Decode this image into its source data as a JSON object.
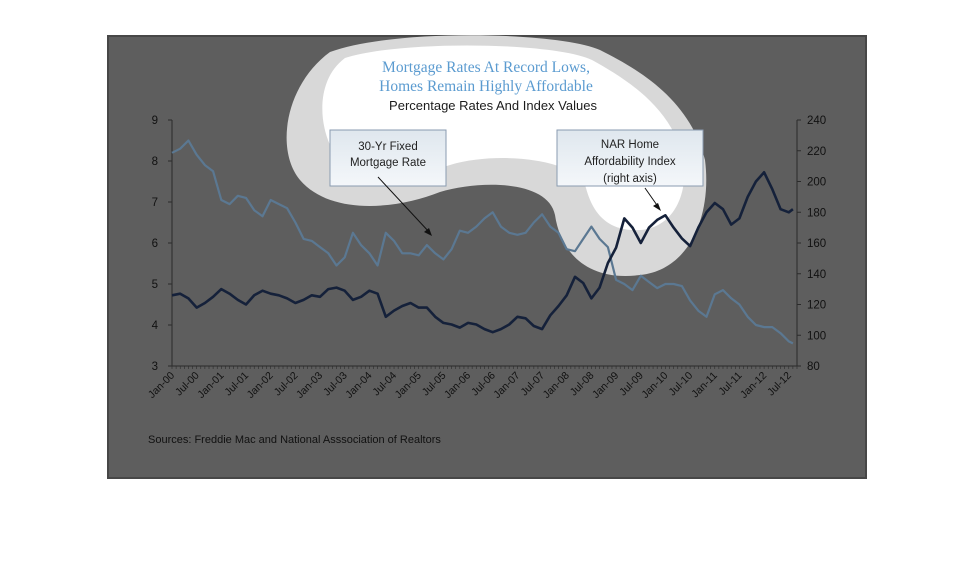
{
  "chart_data": {
    "type": "line",
    "title_lines": [
      "Mortgage Rates At Record Lows,",
      "Homes Remain Highly Affordable"
    ],
    "subtitle": "Percentage Rates And Index Values",
    "source": "Sources:  Freddie Mac and National Asssociation of Realtors",
    "x_tick_labels": [
      "Jan-00",
      "Jul-00",
      "Jan-01",
      "Jul-01",
      "Jan-02",
      "Jul-02",
      "Jan-03",
      "Jul-03",
      "Jan-04",
      "Jul-04",
      "Jan-05",
      "Jul-05",
      "Jan-06",
      "Jul-06",
      "Jan-07",
      "Jul-07",
      "Jan-08",
      "Jul-08",
      "Jan-09",
      "Jul-09",
      "Jan-10",
      "Jul-10",
      "Jan-11",
      "Jul-11",
      "Jan-12",
      "Jul-12"
    ],
    "x_start": "Jan-00",
    "x_end": "Sep-12",
    "y_left": {
      "min": 3,
      "max": 9,
      "ticks": [
        3,
        4,
        5,
        6,
        7,
        8,
        9
      ]
    },
    "y_right": {
      "min": 80,
      "max": 240,
      "ticks": [
        80,
        100,
        120,
        140,
        160,
        180,
        200,
        220,
        240
      ]
    },
    "grid": false,
    "colors": {
      "mortgage": "#5b7892",
      "nar": "#15213a",
      "plot_bg": "#5e5e5e",
      "frame": "#4a4a4a",
      "title": "#5b9bd0"
    },
    "series": [
      {
        "name": "30-Yr Fixed Mortgage Rate",
        "axis": "left",
        "color": "#5b7892",
        "points": [
          [
            "Jan-00",
            8.2
          ],
          [
            "Mar-00",
            8.3
          ],
          [
            "May-00",
            8.5
          ],
          [
            "Jul-00",
            8.15
          ],
          [
            "Sep-00",
            7.9
          ],
          [
            "Nov-00",
            7.75
          ],
          [
            "Jan-01",
            7.05
          ],
          [
            "Mar-01",
            6.95
          ],
          [
            "May-01",
            7.15
          ],
          [
            "Jul-01",
            7.1
          ],
          [
            "Sep-01",
            6.8
          ],
          [
            "Nov-01",
            6.65
          ],
          [
            "Jan-02",
            7.05
          ],
          [
            "Mar-02",
            6.95
          ],
          [
            "May-02",
            6.85
          ],
          [
            "Jul-02",
            6.5
          ],
          [
            "Sep-02",
            6.1
          ],
          [
            "Nov-02",
            6.05
          ],
          [
            "Jan-03",
            5.9
          ],
          [
            "Mar-03",
            5.75
          ],
          [
            "May-03",
            5.45
          ],
          [
            "Jul-03",
            5.65
          ],
          [
            "Sep-03",
            6.25
          ],
          [
            "Nov-03",
            5.95
          ],
          [
            "Jan-04",
            5.75
          ],
          [
            "Mar-04",
            5.45
          ],
          [
            "May-04",
            6.25
          ],
          [
            "Jul-04",
            6.05
          ],
          [
            "Sep-04",
            5.75
          ],
          [
            "Nov-04",
            5.75
          ],
          [
            "Jan-05",
            5.7
          ],
          [
            "Mar-05",
            5.95
          ],
          [
            "May-05",
            5.75
          ],
          [
            "Jul-05",
            5.6
          ],
          [
            "Sep-05",
            5.85
          ],
          [
            "Nov-05",
            6.3
          ],
          [
            "Jan-06",
            6.25
          ],
          [
            "Mar-06",
            6.4
          ],
          [
            "May-06",
            6.6
          ],
          [
            "Jul-06",
            6.75
          ],
          [
            "Sep-06",
            6.4
          ],
          [
            "Nov-06",
            6.25
          ],
          [
            "Jan-07",
            6.2
          ],
          [
            "Mar-07",
            6.25
          ],
          [
            "May-07",
            6.5
          ],
          [
            "Jul-07",
            6.7
          ],
          [
            "Sep-07",
            6.4
          ],
          [
            "Nov-07",
            6.25
          ],
          [
            "Jan-08",
            5.85
          ],
          [
            "Mar-08",
            5.8
          ],
          [
            "May-08",
            6.1
          ],
          [
            "Jul-08",
            6.4
          ],
          [
            "Sep-08",
            6.1
          ],
          [
            "Nov-08",
            5.9
          ],
          [
            "Jan-09",
            5.1
          ],
          [
            "Mar-09",
            5.0
          ],
          [
            "May-09",
            4.85
          ],
          [
            "Jul-09",
            5.2
          ],
          [
            "Sep-09",
            5.05
          ],
          [
            "Nov-09",
            4.9
          ],
          [
            "Jan-10",
            5.0
          ],
          [
            "Mar-10",
            5.0
          ],
          [
            "May-10",
            4.95
          ],
          [
            "Jul-10",
            4.6
          ],
          [
            "Sep-10",
            4.35
          ],
          [
            "Nov-10",
            4.2
          ],
          [
            "Jan-11",
            4.75
          ],
          [
            "Mar-11",
            4.85
          ],
          [
            "May-11",
            4.65
          ],
          [
            "Jul-11",
            4.5
          ],
          [
            "Sep-11",
            4.2
          ],
          [
            "Nov-11",
            4.0
          ],
          [
            "Jan-12",
            3.95
          ],
          [
            "Mar-12",
            3.95
          ],
          [
            "May-12",
            3.8
          ],
          [
            "Jul-12",
            3.6
          ],
          [
            "Aug-12",
            3.55
          ]
        ]
      },
      {
        "name": "NAR Home Affordability Index (right axis)",
        "axis": "right",
        "color": "#15213a",
        "points": [
          [
            "Jan-00",
            126
          ],
          [
            "Mar-00",
            127
          ],
          [
            "May-00",
            124
          ],
          [
            "Jul-00",
            118
          ],
          [
            "Sep-00",
            121
          ],
          [
            "Nov-00",
            125
          ],
          [
            "Jan-01",
            130
          ],
          [
            "Mar-01",
            127
          ],
          [
            "May-01",
            123
          ],
          [
            "Jul-01",
            120
          ],
          [
            "Sep-01",
            126
          ],
          [
            "Nov-01",
            129
          ],
          [
            "Jan-02",
            127
          ],
          [
            "Mar-02",
            126
          ],
          [
            "May-02",
            124
          ],
          [
            "Jul-02",
            121
          ],
          [
            "Sep-02",
            123
          ],
          [
            "Nov-02",
            126
          ],
          [
            "Jan-03",
            125
          ],
          [
            "Mar-03",
            130
          ],
          [
            "May-03",
            131
          ],
          [
            "Jul-03",
            129
          ],
          [
            "Sep-03",
            123
          ],
          [
            "Nov-03",
            125
          ],
          [
            "Jan-04",
            129
          ],
          [
            "Mar-04",
            127
          ],
          [
            "May-04",
            112
          ],
          [
            "Jul-04",
            116
          ],
          [
            "Sep-04",
            119
          ],
          [
            "Nov-04",
            121
          ],
          [
            "Jan-05",
            118
          ],
          [
            "Mar-05",
            118
          ],
          [
            "May-05",
            112
          ],
          [
            "Jul-05",
            108
          ],
          [
            "Sep-05",
            107
          ],
          [
            "Nov-05",
            105
          ],
          [
            "Jan-06",
            108
          ],
          [
            "Mar-06",
            107
          ],
          [
            "May-06",
            104
          ],
          [
            "Jul-06",
            102
          ],
          [
            "Sep-06",
            104
          ],
          [
            "Nov-06",
            107
          ],
          [
            "Jan-07",
            112
          ],
          [
            "Mar-07",
            111
          ],
          [
            "May-07",
            106
          ],
          [
            "Jul-07",
            104
          ],
          [
            "Sep-07",
            113
          ],
          [
            "Nov-07",
            119
          ],
          [
            "Jan-08",
            126
          ],
          [
            "Mar-08",
            138
          ],
          [
            "May-08",
            134
          ],
          [
            "Jul-08",
            124
          ],
          [
            "Sep-08",
            131
          ],
          [
            "Nov-08",
            147
          ],
          [
            "Jan-09",
            157
          ],
          [
            "Mar-09",
            176
          ],
          [
            "May-09",
            170
          ],
          [
            "Jul-09",
            160
          ],
          [
            "Sep-09",
            170
          ],
          [
            "Nov-09",
            175
          ],
          [
            "Jan-10",
            178
          ],
          [
            "Mar-10",
            170
          ],
          [
            "May-10",
            163
          ],
          [
            "Jul-10",
            158
          ],
          [
            "Sep-10",
            170
          ],
          [
            "Nov-10",
            180
          ],
          [
            "Jan-11",
            186
          ],
          [
            "Mar-11",
            182
          ],
          [
            "May-11",
            172
          ],
          [
            "Jul-11",
            176
          ],
          [
            "Sep-11",
            190
          ],
          [
            "Nov-11",
            200
          ],
          [
            "Jan-12",
            206
          ],
          [
            "Mar-12",
            195
          ],
          [
            "May-12",
            182
          ],
          [
            "Jul-12",
            180
          ],
          [
            "Aug-12",
            182
          ]
        ]
      }
    ],
    "callouts": [
      {
        "lines": [
          "30-Yr Fixed",
          "Mortgage Rate"
        ],
        "series": "30-Yr Fixed Mortgage Rate",
        "arrow_to": [
          "Jul-05",
          5.8,
          "left"
        ]
      },
      {
        "lines": [
          "NAR Home",
          "Affordability Index",
          "(right axis)"
        ],
        "series": "NAR Home Affordability Index (right axis)",
        "arrow_to": [
          "Sep-09",
          179,
          "right"
        ]
      }
    ]
  }
}
